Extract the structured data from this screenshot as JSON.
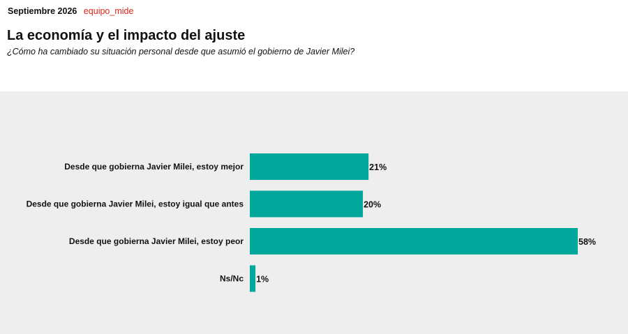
{
  "header": {
    "date": "Septiembre 2026",
    "source": "equipo_mide"
  },
  "title": "La economía y el impacto del ajuste",
  "subtitle": "¿Cómo ha cambiado su situación personal desde que asumió el gobierno de Javier Milei?",
  "colors": {
    "bar": "#00a89c",
    "panel_background": "#eeeeee",
    "source_text": "#e0241b"
  },
  "chart_data": {
    "type": "bar",
    "orientation": "horizontal",
    "categories": [
      "Desde que gobierna Javier Milei, estoy mejor",
      "Desde que gobierna Javier Milei, estoy igual que antes",
      "Desde que gobierna Javier Milei, estoy peor",
      "Ns/Nc"
    ],
    "values": [
      21,
      20,
      58,
      1
    ],
    "value_labels": [
      "21%",
      "20%",
      "58%",
      "1%"
    ],
    "unit": "%",
    "xlim": [
      0,
      58
    ],
    "grid": false,
    "legend": "none"
  }
}
